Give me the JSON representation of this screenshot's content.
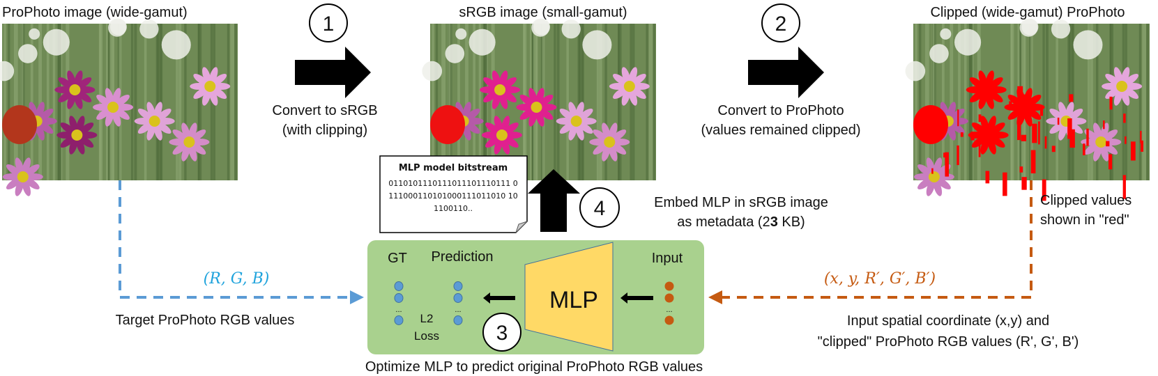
{
  "images": {
    "prophoto": {
      "title": "ProPhoto image (wide-gamut)"
    },
    "srgb": {
      "title": "sRGB image (small-gamut)"
    },
    "clipped": {
      "title": "Clipped (wide-gamut) ProPhoto"
    }
  },
  "steps": {
    "step1": {
      "number": "1",
      "line1": "Convert to sRGB",
      "line2": "(with clipping)"
    },
    "step2": {
      "number": "2",
      "line1": "Convert to ProPhoto",
      "line2": "(values remained clipped)"
    },
    "step3": {
      "number": "3",
      "caption": "Optimize MLP to predict original ProPhoto RGB values"
    },
    "step4": {
      "number": "4",
      "line1": "Embed MLP in sRGB image",
      "line2_prefix": "as metadata (2",
      "line2_bold": "3",
      "line2_suffix": " KB)"
    }
  },
  "note": {
    "title": "MLP model bitstream",
    "lines": [
      "0110101110111011101110111 0",
      "111000110101000111011010 10",
      "1100110.."
    ]
  },
  "clipped_note": {
    "line1": "Clipped values",
    "line2": "shown in \"red\""
  },
  "mlp_box": {
    "gt_label": "GT",
    "prediction_label": "Prediction",
    "input_label": "Input",
    "mlp_label": "MLP",
    "loss_line1": "L2",
    "loss_line2": "Loss",
    "ellipsis": "..."
  },
  "target": {
    "math": "(R, G, B)",
    "caption": "Target ProPhoto RGB values"
  },
  "input": {
    "math": "(x, y, R′, G′, B′)",
    "line1": "Input spatial coordinate (x,y) and",
    "line2": "\"clipped\" ProPhoto RGB values (R', G', B')"
  },
  "colors": {
    "green_box": "#a9d18e",
    "mlp": "#ffd966",
    "blue": "#5b9bd5",
    "orange": "#c55a11",
    "math_blue": "#1fa3dc",
    "clip_red": "#ff0000"
  }
}
